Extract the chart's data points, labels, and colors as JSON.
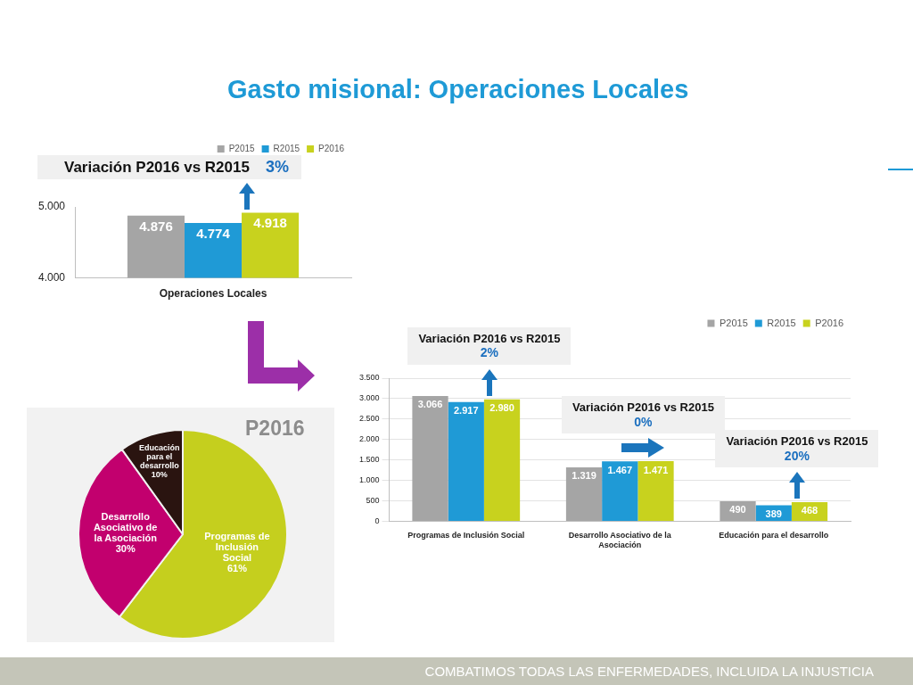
{
  "chart_data": [
    {
      "type": "bar",
      "title": "Gasto misional: Operaciones Locales",
      "categories": [
        "Operaciones Locales"
      ],
      "series": [
        {
          "name": "P2015",
          "color": "#a5a5a5",
          "values": [
            4876
          ],
          "value_labels": [
            "4.876"
          ]
        },
        {
          "name": "R2015",
          "color": "#1f9ad6",
          "values": [
            4774
          ],
          "value_labels": [
            "4.774"
          ]
        },
        {
          "name": "P2016",
          "color": "#c8d21e",
          "values": [
            4918
          ],
          "value_labels": [
            "4.918"
          ]
        }
      ],
      "ylim": [
        4000,
        5000
      ],
      "yticks": [
        {
          "value": 4000,
          "label": "4.000"
        },
        {
          "value": 5000,
          "label": "5.000"
        }
      ],
      "legend": "top right",
      "annotations": [
        "Variación P2016 vs R2015\n3%",
        "COMBATIMOS TODAS LAS ENFERMEDADES, INCLUIDA LA INJUSTICIA"
      ]
    },
    {
      "type": "bar",
      "categories": [
        "Programas de Inclusión Social",
        "Desarrollo Asociativo de la Asociación",
        "Educación para el desarrollo"
      ],
      "series": [
        {
          "name": "P2015",
          "color": "#a5a5a5",
          "values": [
            3066,
            1319,
            490
          ],
          "value_labels": [
            "3.066",
            "1.319",
            "490"
          ]
        },
        {
          "name": "R2015",
          "color": "#1f9ad6",
          "values": [
            2917,
            1467,
            389
          ],
          "value_labels": [
            "2.917",
            "1.467",
            "389"
          ]
        },
        {
          "name": "P2016",
          "color": "#c8d21e",
          "values": [
            2980,
            1471,
            468
          ],
          "value_labels": [
            "2.980",
            "1.471",
            "468"
          ]
        }
      ],
      "ylim": [
        0,
        3500
      ],
      "yticks": [
        0,
        500,
        {
          "value": 1000,
          "label": "1.000"
        },
        {
          "value": 1500,
          "label": "1.500"
        },
        {
          "value": 2000,
          "label": "2.000"
        },
        {
          "value": 2500,
          "label": "2.500"
        },
        {
          "value": 3000,
          "label": "3.000"
        },
        {
          "value": 3500,
          "label": "3.500"
        }
      ],
      "grid": "y",
      "legend": "top right",
      "annotations": [
        "Variación P2016 vs R2015\n2%",
        "Variación P2016 vs R2015\n0%",
        "Variación P2016 vs R2015\n20%"
      ]
    },
    {
      "type": "pie",
      "title": "P2016",
      "categories": [
        "Programas de Inclusión Social",
        "Desarrollo Asociativo de la Asociación",
        "Educación para el desarrollo"
      ],
      "values": [
        61,
        30,
        10
      ],
      "colors": [
        "#c5cf1e",
        "#c2006e",
        "#2a1410"
      ],
      "value_labels": [
        "61%",
        "30%",
        "10%"
      ]
    }
  ]
}
